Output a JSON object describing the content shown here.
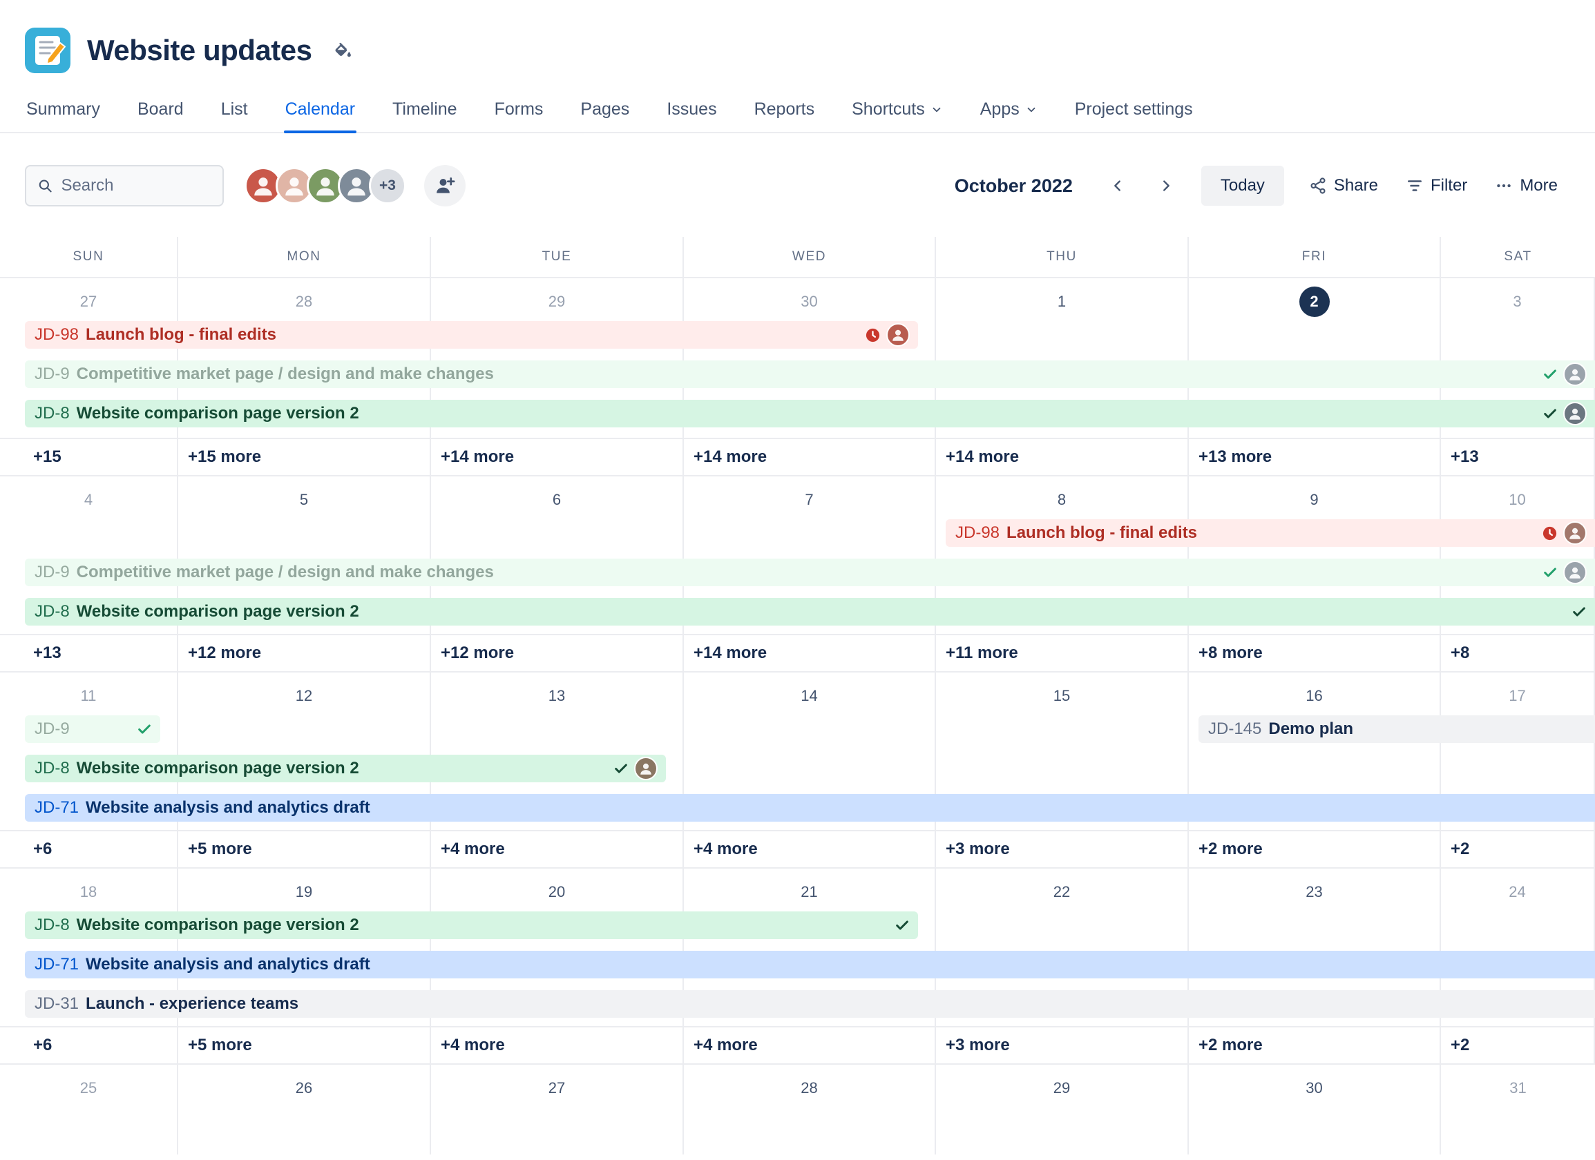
{
  "app": {
    "project_title": "Website updates",
    "icons": {
      "project_icon": "notebook-pencil-icon",
      "title_action": "paint-format-icon"
    }
  },
  "tabs": {
    "items": [
      {
        "label": "Summary"
      },
      {
        "label": "Board"
      },
      {
        "label": "List"
      },
      {
        "label": "Calendar",
        "active": true
      },
      {
        "label": "Timeline"
      },
      {
        "label": "Forms"
      },
      {
        "label": "Pages"
      },
      {
        "label": "Issues"
      },
      {
        "label": "Reports"
      },
      {
        "label": "Shortcuts",
        "chevron": true
      },
      {
        "label": "Apps",
        "chevron": true
      },
      {
        "label": "Project settings"
      }
    ]
  },
  "toolbar": {
    "search_placeholder": "Search",
    "avatars": [
      {
        "name": "user-avatar-1",
        "color": "#C9584A"
      },
      {
        "name": "user-avatar-2",
        "color": "#E0B5A6"
      },
      {
        "name": "user-avatar-3",
        "color": "#7B9B63"
      },
      {
        "name": "user-avatar-4",
        "color": "#7E8B99"
      }
    ],
    "overflow_count": "+3",
    "month_label": "October 2022",
    "today_label": "Today",
    "share_label": "Share",
    "filter_label": "Filter",
    "more_label": "More"
  },
  "calendar": {
    "day_headers": [
      "SUN",
      "MON",
      "TUE",
      "WED",
      "THU",
      "FRI",
      "SAT"
    ],
    "grid_line_color": "#EBECF0",
    "accent_color": "#0C66E4",
    "today_color": "#1C3353",
    "palette": {
      "red": {
        "bg": "#FFECEB",
        "key": "#C9372C",
        "text": "#AE2E24"
      },
      "green": {
        "bg": "#D6F5E3",
        "key": "#216E4E",
        "text": "#164B35"
      },
      "green_muted": {
        "bg": "#EDFBF2",
        "key": "#97ABA0",
        "text": "#93A79D"
      },
      "blue": {
        "bg": "#CCE0FF",
        "key": "#0055CC",
        "text": "#09326C"
      },
      "gray": {
        "bg": "#F1F2F4",
        "key": "#626F86",
        "text": "#172B4D"
      }
    },
    "weeks": [
      {
        "dates": [
          {
            "day": "27",
            "muted": true
          },
          {
            "day": "28",
            "muted": true
          },
          {
            "day": "29",
            "muted": true
          },
          {
            "day": "30",
            "muted": true
          },
          {
            "day": "1"
          },
          {
            "day": "2",
            "today": true
          },
          {
            "day": "3",
            "muted": true
          }
        ],
        "events": [
          {
            "key": "JD-98",
            "title": "Launch blog - final edits",
            "color": "red",
            "slot": 0,
            "start": 0,
            "end": 3,
            "bleed": false,
            "overdue": true,
            "avatar": "#B85C4F"
          },
          {
            "key": "JD-9",
            "title": "Competitive market page / design and make changes",
            "color": "green_muted",
            "slot": 1,
            "start": 0,
            "end": 6,
            "bleed": true,
            "done": true,
            "avatar": "#9AA3AB"
          },
          {
            "key": "JD-8",
            "title": "Website comparison page version 2",
            "color": "green",
            "slot": 2,
            "start": 0,
            "end": 6,
            "bleed": true,
            "done": true,
            "avatar": "#6B7680"
          }
        ],
        "more": [
          "+15",
          "+15 more",
          "+14 more",
          "+14 more",
          "+14 more",
          "+13 more",
          "+13"
        ]
      },
      {
        "dates": [
          {
            "day": "4",
            "muted": true
          },
          {
            "day": "5"
          },
          {
            "day": "6"
          },
          {
            "day": "7"
          },
          {
            "day": "8"
          },
          {
            "day": "9"
          },
          {
            "day": "10",
            "muted": true
          }
        ],
        "events": [
          {
            "key": "JD-98",
            "title": "Launch blog - final edits",
            "color": "red",
            "slot": 0,
            "start": 4,
            "end": 6,
            "bleed": true,
            "overdue": true,
            "avatar": "#A2776B"
          },
          {
            "key": "JD-9",
            "title": "Competitive market page / design and make changes",
            "color": "green_muted",
            "slot": 1,
            "start": 0,
            "end": 6,
            "bleed": true,
            "done": true,
            "avatar": "#9AA3AB"
          },
          {
            "key": "JD-8",
            "title": "Website comparison page version 2",
            "color": "green",
            "slot": 2,
            "start": 0,
            "end": 6,
            "bleed": true,
            "done": true
          }
        ],
        "more": [
          "+13",
          "+12 more",
          "+12 more",
          "+14 more",
          "+11 more",
          "+8 more",
          "+8"
        ]
      },
      {
        "dates": [
          {
            "day": "11",
            "muted": true
          },
          {
            "day": "12"
          },
          {
            "day": "13"
          },
          {
            "day": "14"
          },
          {
            "day": "15"
          },
          {
            "day": "16"
          },
          {
            "day": "17",
            "muted": true
          }
        ],
        "events": [
          {
            "key": "JD-9",
            "title": "",
            "color": "green_muted",
            "slot": 0,
            "start": 0,
            "end": 0,
            "bleed": false,
            "done": true
          },
          {
            "key": "JD-145",
            "title": "Demo plan",
            "color": "gray",
            "slot": 0,
            "start": 5,
            "end": 6,
            "bleed": true
          },
          {
            "key": "JD-8",
            "title": "Website comparison page version 2",
            "color": "green",
            "slot": 1,
            "start": 0,
            "end": 2,
            "bleed": false,
            "done": true,
            "avatar": "#8A7662"
          },
          {
            "key": "JD-71",
            "title": "Website analysis and analytics draft",
            "color": "blue",
            "slot": 2,
            "start": 0,
            "end": 6,
            "bleed": true
          }
        ],
        "more": [
          "+6",
          "+5 more",
          "+4 more",
          "+4 more",
          "+3 more",
          "+2 more",
          "+2"
        ]
      },
      {
        "dates": [
          {
            "day": "18",
            "muted": true
          },
          {
            "day": "19"
          },
          {
            "day": "20"
          },
          {
            "day": "21"
          },
          {
            "day": "22"
          },
          {
            "day": "23"
          },
          {
            "day": "24",
            "muted": true
          }
        ],
        "events": [
          {
            "key": "JD-8",
            "title": "Website comparison page version 2",
            "color": "green",
            "slot": 0,
            "start": 0,
            "end": 3,
            "bleed": false,
            "done": true
          },
          {
            "key": "JD-71",
            "title": "Website analysis and analytics draft",
            "color": "blue",
            "slot": 1,
            "start": 0,
            "end": 6,
            "bleed": true
          },
          {
            "key": "JD-31",
            "title": "Launch - experience teams",
            "color": "gray",
            "slot": 2,
            "start": 0,
            "end": 6,
            "bleed": true
          }
        ],
        "more": [
          "+6",
          "+5 more",
          "+4 more",
          "+4 more",
          "+3 more",
          "+2 more",
          "+2"
        ]
      },
      {
        "dates": [
          {
            "day": "25",
            "muted": true
          },
          {
            "day": "26"
          },
          {
            "day": "27"
          },
          {
            "day": "28"
          },
          {
            "day": "29"
          },
          {
            "day": "30"
          },
          {
            "day": "31",
            "muted": true
          }
        ],
        "events": [],
        "more": null
      }
    ]
  }
}
